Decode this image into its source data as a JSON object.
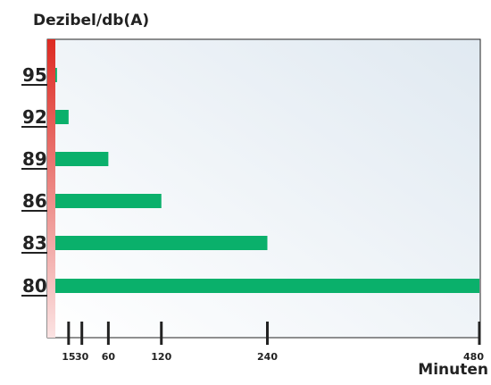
{
  "chart_data": {
    "type": "bar",
    "orientation": "horizontal",
    "ylabel": "Dezibel/db(A)",
    "xlabel": "Minuten",
    "categories": [
      "95",
      "92",
      "89",
      "86",
      "83",
      "80"
    ],
    "values": [
      1.875,
      15,
      60,
      120,
      240,
      480
    ],
    "x_ticks": [
      15,
      30,
      60,
      120,
      240,
      480
    ],
    "x_tick_labels": [
      "15",
      "30",
      "60",
      "120",
      "240",
      "480"
    ],
    "xlim": [
      0,
      480
    ],
    "grid": false,
    "legend": "none",
    "colors": {
      "bar": "#0ab06b",
      "axis_stripe_top": "#dd2a22",
      "axis_stripe_bottom": "#fbe3e3",
      "plot_bg_left": "#ffffff",
      "plot_bg_right": "#e0e9f1",
      "text": "#222222"
    }
  }
}
